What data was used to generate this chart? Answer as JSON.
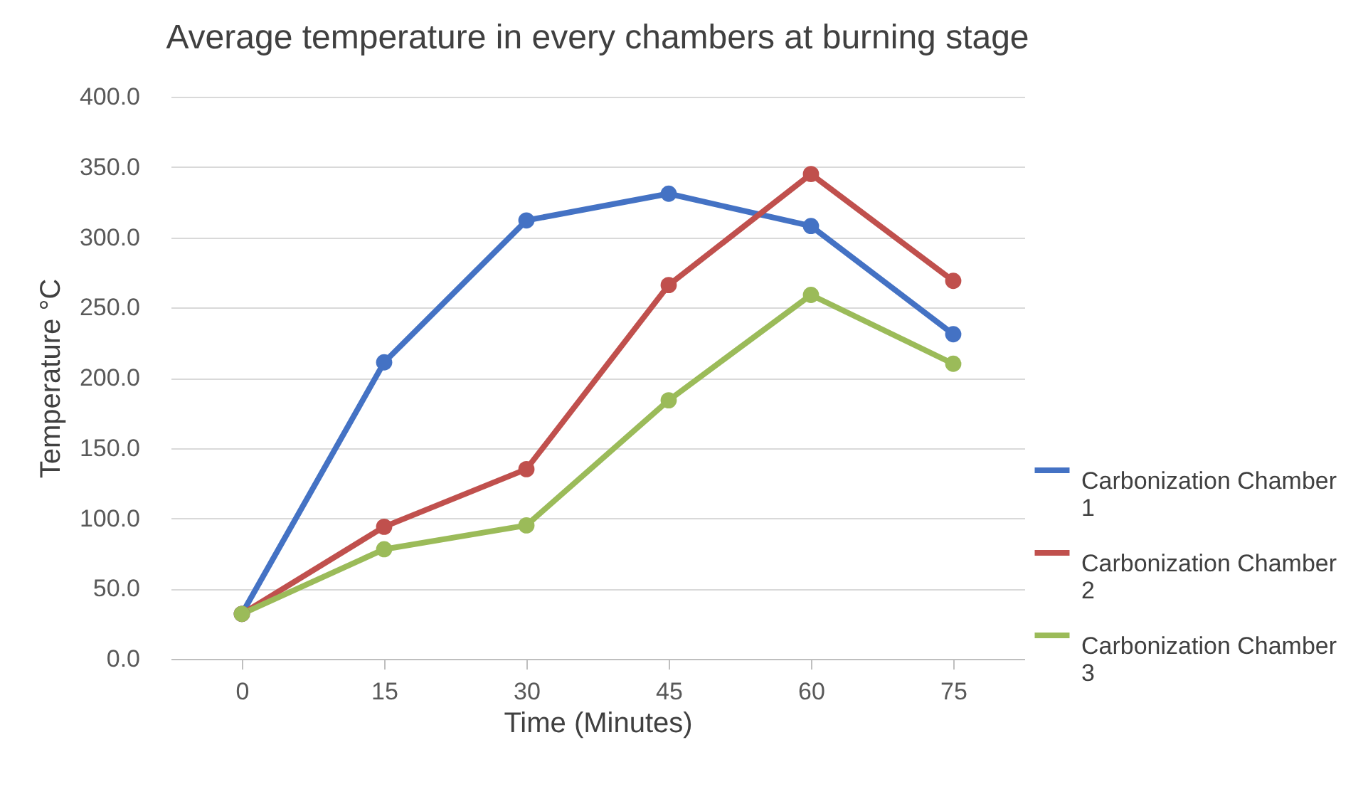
{
  "chart_data": {
    "type": "line",
    "title": "Average temperature in every chambers at burning stage",
    "xlabel": "Time (Minutes)",
    "ylabel": "Temperature °C",
    "categories": [
      "0",
      "15",
      "30",
      "45",
      "60",
      "75"
    ],
    "series": [
      {
        "name": "Carbonization Chamber 1",
        "color": "#4472c4",
        "values": [
          32,
          211,
          312,
          331,
          308,
          231
        ]
      },
      {
        "name": "Carbonization Chamber 2",
        "color": "#c0504d",
        "values": [
          32,
          94,
          135,
          266,
          345,
          269
        ]
      },
      {
        "name": "Carbonization Chamber 3",
        "color": "#9bbb59",
        "values": [
          32,
          78,
          95,
          184,
          259,
          210
        ]
      }
    ],
    "ylim": [
      0,
      400
    ],
    "yticks": [
      {
        "value": 0,
        "label": "0.0"
      },
      {
        "value": 50,
        "label": "50.0"
      },
      {
        "value": 100,
        "label": "100.0"
      },
      {
        "value": 150,
        "label": "150.0"
      },
      {
        "value": 200,
        "label": "200.0"
      },
      {
        "value": 250,
        "label": "250.0"
      },
      {
        "value": 300,
        "label": "300.0"
      },
      {
        "value": 350,
        "label": "350.0"
      },
      {
        "value": 400,
        "label": "400.0"
      }
    ],
    "grid": "y",
    "legend": "right",
    "marker": "circle",
    "line_style": "solid"
  }
}
